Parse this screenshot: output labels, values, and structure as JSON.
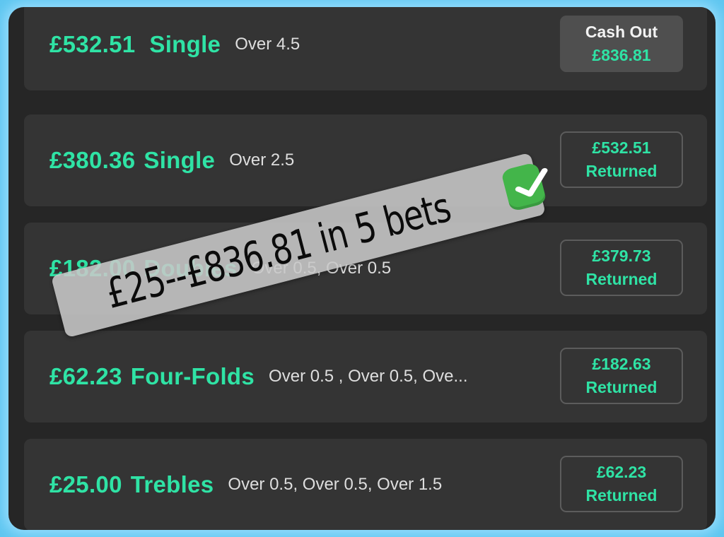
{
  "bets": [
    {
      "amount": "£532.51",
      "type": "Single",
      "selections": "Over 4.5",
      "status_kind": "cashout",
      "status_label": "Cash Out",
      "status_amount": "£836.81"
    },
    {
      "amount": "£380.36",
      "type": "Single",
      "selections": "Over 2.5",
      "status_kind": "returned",
      "status_label": "Returned",
      "status_amount": "£532.51"
    },
    {
      "amount": "£182.00",
      "type": "Doubles",
      "selections": "Over 0.5, Over 0.5",
      "status_kind": "returned",
      "status_label": "Returned",
      "status_amount": "£379.73"
    },
    {
      "amount": "£62.23",
      "type": "Four-Folds",
      "selections": "Over 0.5 , Over 0.5, Ove...",
      "status_kind": "returned",
      "status_label": "Returned",
      "status_amount": "£182.63"
    },
    {
      "amount": "£25.00",
      "type": "Trebles",
      "selections": "Over 0.5, Over 0.5, Over 1.5",
      "status_kind": "returned",
      "status_label": "Returned",
      "status_amount": "£62.23"
    }
  ],
  "overlay": {
    "text": "£25--£836.81 in 5 bets",
    "icon": "check-mark-button-icon",
    "icon_color": "#43b54a"
  },
  "colors": {
    "accent": "#2fe3a5",
    "card": "#343434",
    "frame": "#262626",
    "border_glow": "#5ec6f0"
  }
}
